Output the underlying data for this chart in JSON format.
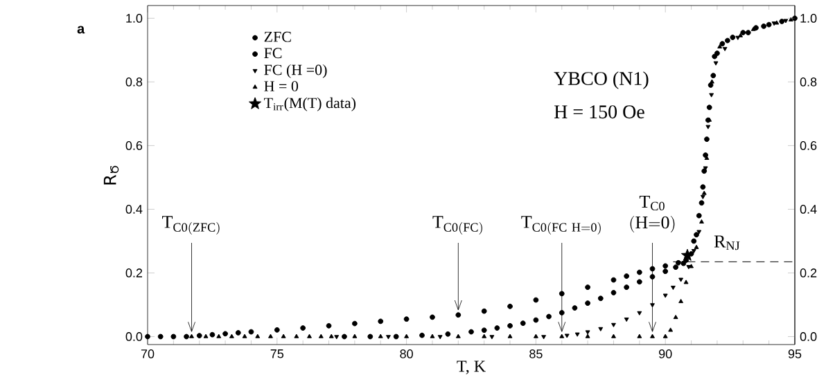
{
  "chart_data": {
    "type": "scatter",
    "xlabel": "T, K",
    "ylabel": "R$_{Ծ}$",
    "xlim": [
      70,
      95
    ],
    "ylim": [
      -0.025,
      1.04
    ],
    "y2lim": [
      -0.025,
      1.04
    ],
    "xticks": [
      70,
      75,
      80,
      85,
      90,
      95
    ],
    "yticks": [
      {
        "value": 0,
        "label": "0.0"
      },
      0.2,
      0.4,
      0.6,
      0.8,
      {
        "value": 1,
        "label": "1.0"
      }
    ],
    "y2ticks": [
      {
        "value": 0,
        "label": "0.0"
      },
      0.2,
      0.4,
      0.6,
      0.8,
      {
        "value": 1,
        "label": "1.0"
      }
    ],
    "grid": false,
    "legend": "top left",
    "series": [
      {
        "name": "ZFC",
        "color": "#000000",
        "marker": "circle",
        "x": [
          70,
          70.5,
          71,
          71.5,
          72,
          72.5,
          73,
          73.5,
          74,
          75,
          76,
          77,
          78,
          79,
          80,
          81,
          82,
          83,
          84,
          85,
          86,
          87,
          88,
          88.5,
          89,
          89.5,
          90,
          90.5,
          90.8,
          91.1,
          91.3,
          91.45,
          91.55,
          91.65,
          91.75,
          91.9,
          92.2,
          92.6,
          93,
          93.5,
          94,
          94.5,
          95
        ],
        "values": [
          0,
          0,
          0,
          0,
          0.003,
          0.006,
          0.009,
          0.012,
          0.015,
          0.021,
          0.027,
          0.034,
          0.041,
          0.048,
          0.055,
          0.061,
          0.068,
          0.08,
          0.095,
          0.115,
          0.135,
          0.155,
          0.178,
          0.19,
          0.202,
          0.213,
          0.222,
          0.232,
          0.24,
          0.3,
          0.38,
          0.47,
          0.57,
          0.68,
          0.79,
          0.88,
          0.92,
          0.94,
          0.955,
          0.97,
          0.98,
          0.99,
          1.0
        ]
      },
      {
        "name": "FC",
        "color": "#000000",
        "marker": "circle",
        "x": [
          77.6,
          78.6,
          79.6,
          80.6,
          81.6,
          82.5,
          83,
          83.5,
          84,
          84.5,
          85,
          85.5,
          86,
          86.5,
          87,
          87.5,
          88,
          88.5,
          89,
          89.5,
          90,
          90.4,
          90.7,
          91,
          91.2,
          91.4,
          91.5,
          91.6,
          91.7,
          91.85,
          92,
          92.4,
          93.2,
          93.8
        ],
        "values": [
          0,
          0,
          0,
          0.004,
          0.008,
          0.015,
          0.02,
          0.027,
          0.034,
          0.042,
          0.052,
          0.063,
          0.075,
          0.09,
          0.105,
          0.12,
          0.138,
          0.155,
          0.172,
          0.188,
          0.205,
          0.218,
          0.23,
          0.26,
          0.32,
          0.42,
          0.52,
          0.62,
          0.72,
          0.82,
          0.89,
          0.93,
          0.955,
          0.975
        ]
      },
      {
        "name": "FC (H =0)",
        "color": "#000000",
        "marker": "triangle-down",
        "x": [
          77.3,
          79.3,
          81.3,
          83.3,
          85.3,
          86.2,
          86.6,
          87,
          87.5,
          88,
          88.5,
          89,
          89.5,
          90,
          90.3,
          90.6,
          90.9,
          91.1,
          91.3,
          91.45,
          91.55,
          91.65,
          91.78,
          91.95,
          92.3,
          92.8,
          94.2,
          94.65
        ],
        "values": [
          0,
          0,
          0,
          0,
          0,
          0.004,
          0.008,
          0.015,
          0.025,
          0.038,
          0.055,
          0.075,
          0.1,
          0.13,
          0.155,
          0.18,
          0.22,
          0.27,
          0.33,
          0.44,
          0.53,
          0.66,
          0.76,
          0.86,
          0.905,
          0.94,
          0.985,
          0.993
        ]
      },
      {
        "name": "H = 0",
        "color": "#000000",
        "marker": "triangle",
        "x": [
          71.7,
          72.25,
          72.75,
          73.25,
          73.75,
          74.25,
          74.75,
          75.25,
          75.75,
          76.25,
          76.7,
          77.1,
          78,
          79,
          80,
          81,
          82,
          83,
          84,
          85,
          86,
          87,
          88,
          89,
          89.5,
          90,
          90.2,
          90.4,
          90.6,
          90.8,
          91,
          91.2,
          91.4,
          91.5,
          91.6,
          91.7,
          91.8,
          92.1,
          92.9,
          93.4,
          94.3,
          94.85
        ],
        "values": [
          0,
          0,
          0,
          0,
          0,
          0,
          0,
          0,
          0,
          0,
          0,
          0,
          0,
          0,
          0,
          0,
          0,
          0,
          0,
          0,
          0,
          0,
          0,
          0,
          0,
          0,
          0.02,
          0.06,
          0.11,
          0.17,
          0.22,
          0.28,
          0.36,
          0.45,
          0.56,
          0.68,
          0.8,
          0.91,
          0.945,
          0.965,
          0.985,
          0.995
        ]
      },
      {
        "name": "T$_{irr}$(M(T) data)",
        "color": "#000000",
        "marker": "star",
        "x": [
          90.85
        ],
        "values": [
          0.255
        ]
      },
      {
        "name": "R$_{NJ}$",
        "type": "line",
        "color": "#000000",
        "line_style": "dashed",
        "marker": "none",
        "x": [
          90.3,
          95
        ],
        "values": [
          0.235,
          0.235
        ]
      }
    ],
    "annotations": [
      "a",
      "YBCO (N1)",
      "H = 150 Oe",
      {
        "text": "\\mathrm{T}_{\\mathrm{C0(ZFC)}}",
        "x": 71.7,
        "y": 0
      },
      {
        "text": "\\mathrm{T}_{\\mathrm{C0(FC)}}",
        "x": 82,
        "y": 0.068
      },
      {
        "text": "\\mathrm{T}_{\\mathrm{C0(FC\\ H{=}0)}}",
        "x": 86,
        "y": 0
      },
      {
        "text": "\\begin{array}{c}\\mathrm{T}_{\\mathrm{C0}}\\\\ \\mathrm{(H{=}0)}\\end{array}",
        "x": 89.5,
        "y": 0
      }
    ]
  }
}
